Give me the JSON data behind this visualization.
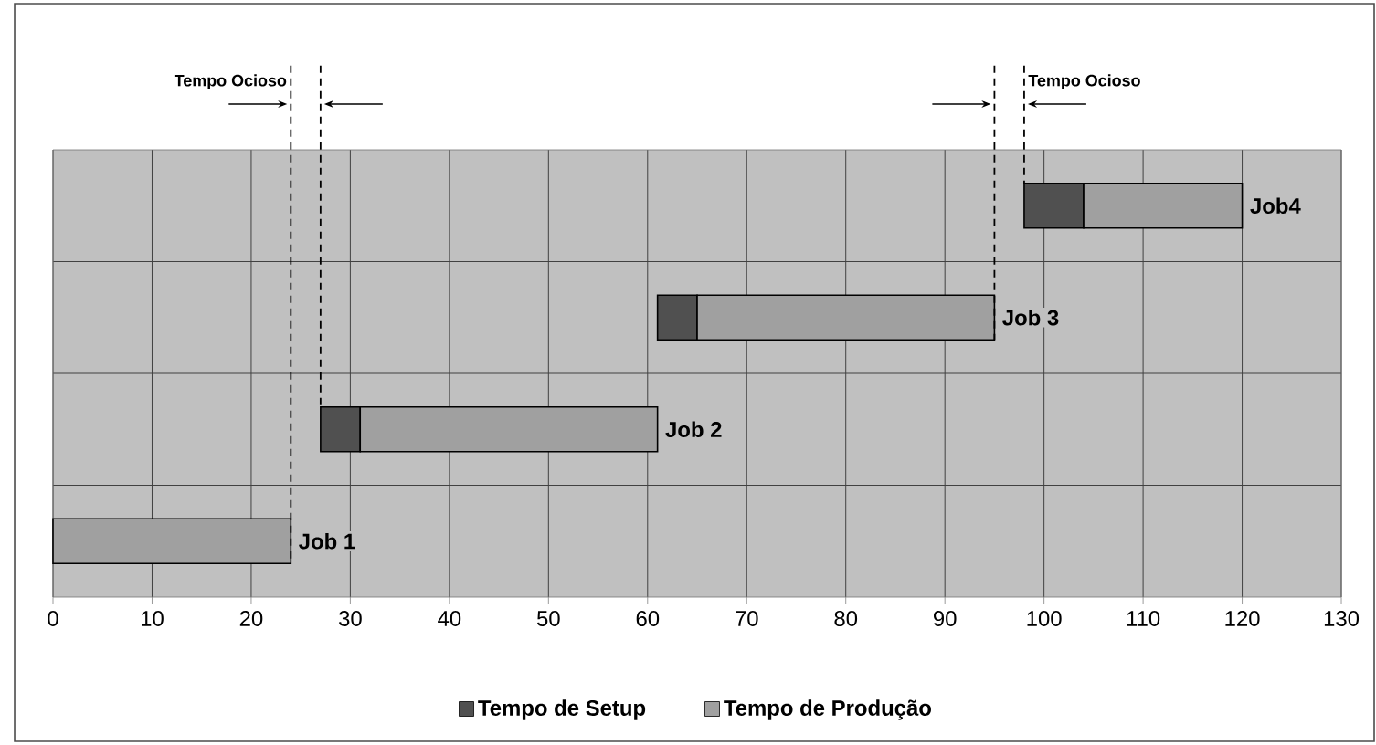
{
  "chart_data": {
    "type": "bar",
    "orientation": "horizontal",
    "categories": [
      null,
      null,
      null,
      null
    ],
    "series": [
      {
        "name": "Tempo de Setup",
        "color": "#505050",
        "base": [
          98,
          61,
          27,
          null
        ],
        "values": [
          6,
          4,
          4,
          null
        ]
      },
      {
        "name": "Tempo de Produção",
        "color": "#a0a0a0",
        "base": [
          104,
          65,
          31,
          0
        ],
        "values": [
          16,
          30,
          30,
          24
        ]
      }
    ],
    "xlim": [
      0,
      130
    ],
    "xticks": [
      0,
      10,
      20,
      30,
      40,
      50,
      60,
      70,
      80,
      90,
      100,
      110,
      120,
      130
    ],
    "grid": true,
    "legend": "bottom",
    "tick_labels": "x",
    "ref_lines": [
      {
        "axis": "x",
        "value": 24,
        "label": "Tempo Ocioso",
        "line_style": "dashed",
        "color": "#000000"
      },
      {
        "axis": "x",
        "value": 27,
        "line_style": "dashed",
        "color": "#000000"
      },
      {
        "axis": "x",
        "value": 95,
        "line_style": "dashed",
        "color": "#000000"
      },
      {
        "axis": "x",
        "value": 98,
        "label": "Tempo Ocioso",
        "line_style": "dashed",
        "color": "#000000"
      }
    ],
    "annotations": [
      {
        "text": "Job 1",
        "x": 24
      },
      {
        "text": "Job 2",
        "x": 61
      },
      {
        "text": "Job 3",
        "x": 95
      },
      {
        "text": "Job4",
        "x": 120
      }
    ]
  }
}
